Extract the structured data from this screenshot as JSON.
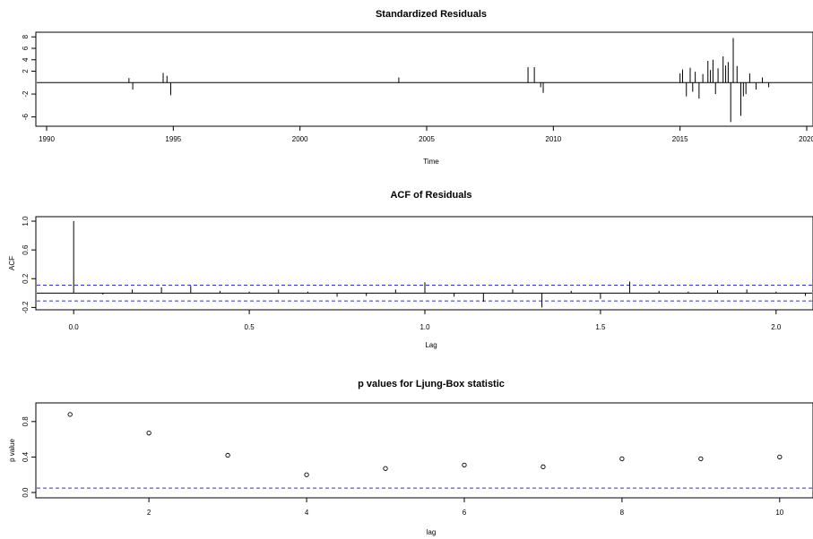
{
  "chart_data": [
    {
      "type": "bar",
      "title": "Standardized Residuals",
      "xlabel": "Time",
      "ylabel": "",
      "xlim": [
        1990,
        2020
      ],
      "ylim": [
        -7,
        8.5
      ],
      "xticks": [
        "1990",
        "1995",
        "2000",
        "2005",
        "2010",
        "2015",
        "2020"
      ],
      "yticks": [
        "8",
        "6",
        "4",
        "2",
        "-2",
        "-6"
      ],
      "ytick_values": [
        8,
        6,
        4,
        2,
        -2,
        -6
      ],
      "series": [
        {
          "x": [
            1993.25,
            1993.4,
            1994.6,
            1994.75,
            1994.9,
            2003.9,
            2009.0,
            2009.25,
            2009.5,
            2009.6,
            2015.0,
            2015.1,
            2015.25,
            2015.4,
            2015.5,
            2015.6,
            2015.75,
            2015.9,
            2016.1,
            2016.2,
            2016.3,
            2016.4,
            2016.5,
            2016.7,
            2016.8,
            2016.9,
            2017.0,
            2017.1,
            2017.25,
            2017.4,
            2017.5,
            2017.6,
            2017.75,
            2018.0,
            2018.25,
            2018.5
          ],
          "values": [
            0.8,
            -1.2,
            1.7,
            1.2,
            -2.2,
            0.9,
            2.7,
            2.7,
            -0.8,
            -1.8,
            1.6,
            2.3,
            -2.4,
            2.6,
            -1.6,
            1.9,
            -2.8,
            1.5,
            3.8,
            2.2,
            4.0,
            -2.0,
            2.5,
            4.6,
            3.0,
            3.6,
            -6.9,
            7.8,
            2.9,
            -5.8,
            -2.4,
            -2.0,
            1.6,
            -1.2,
            0.9,
            -0.8
          ]
        }
      ]
    },
    {
      "type": "bar",
      "title": "ACF of Residuals",
      "xlabel": "Lag",
      "ylabel": "ACF",
      "xlim": [
        -0.1,
        2.1
      ],
      "ylim": [
        -0.22,
        1.05
      ],
      "xticks": [
        "0.0",
        "0.5",
        "1.0",
        "1.5",
        "2.0"
      ],
      "yticks": [
        "1.0",
        "0.6",
        "0.2",
        "-0.2"
      ],
      "ytick_values": [
        1.0,
        0.6,
        0.2,
        -0.2
      ],
      "series": [
        {
          "x": [
            0.0,
            0.0833,
            0.1667,
            0.25,
            0.3333,
            0.4167,
            0.5,
            0.5833,
            0.6667,
            0.75,
            0.8333,
            0.9167,
            1.0,
            1.0833,
            1.1667,
            1.25,
            1.3333,
            1.4167,
            1.5,
            1.5833,
            1.6667,
            1.75,
            1.8333,
            1.9167,
            2.0,
            2.0833
          ],
          "values": [
            1.0,
            -0.02,
            0.05,
            0.08,
            0.1,
            0.03,
            0.02,
            0.05,
            0.02,
            -0.05,
            -0.04,
            0.05,
            0.15,
            -0.05,
            -0.12,
            0.05,
            -0.2,
            0.03,
            -0.08,
            0.16,
            0.03,
            0.02,
            0.04,
            0.05,
            0.02,
            -0.04
          ]
        }
      ],
      "confidence_band": [
        -0.11,
        0.11
      ]
    },
    {
      "type": "scatter",
      "title": "p values for Ljung-Box statistic",
      "xlabel": "lag",
      "ylabel": "p value",
      "xlim": [
        0.6,
        10.4
      ],
      "ylim": [
        -0.05,
        1.0
      ],
      "xticks": [
        "2",
        "4",
        "6",
        "8",
        "10"
      ],
      "xtick_values": [
        2,
        4,
        6,
        8,
        10
      ],
      "yticks": [
        "0.0",
        "0.4",
        "0.8"
      ],
      "ytick_values": [
        0.0,
        0.4,
        0.8
      ],
      "series": [
        {
          "x": [
            1,
            2,
            3,
            4,
            5,
            6,
            7,
            8,
            9,
            10
          ],
          "values": [
            0.88,
            0.67,
            0.42,
            0.2,
            0.27,
            0.31,
            0.29,
            0.38,
            0.38,
            0.4
          ]
        }
      ],
      "reference_line": 0.05
    }
  ],
  "colors": {
    "bars": "#000000",
    "band": "#3333cc",
    "frame": "#000000"
  }
}
